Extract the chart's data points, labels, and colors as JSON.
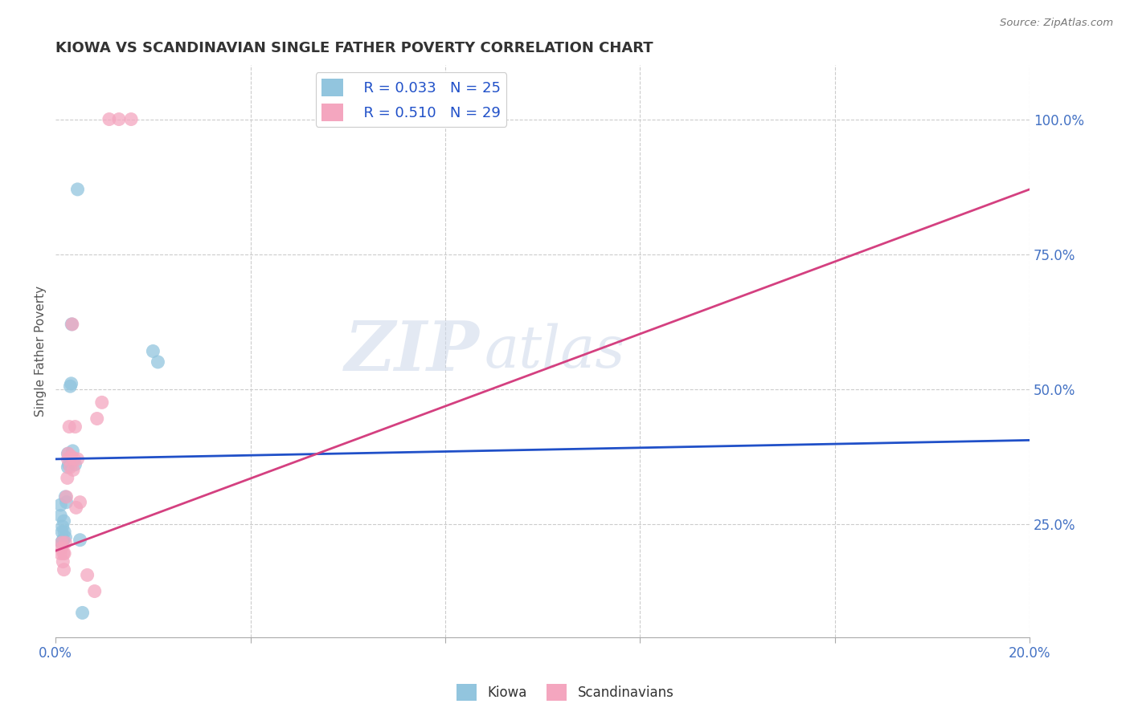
{
  "title": "KIOWA VS SCANDINAVIAN SINGLE FATHER POVERTY CORRELATION CHART",
  "source": "Source: ZipAtlas.com",
  "ylabel": "Single Father Poverty",
  "watermark": "ZIPatlas",
  "legend": {
    "kiowa_R": "R = 0.033",
    "kiowa_N": "N = 25",
    "scand_R": "R = 0.510",
    "scand_N": "N = 29"
  },
  "kiowa_color": "#92c5de",
  "scand_color": "#f4a6bf",
  "kiowa_line_color": "#2050c8",
  "scand_line_color": "#d44080",
  "kiowa_points_x": [
    0.001,
    0.001,
    0.0012,
    0.0013,
    0.0014,
    0.0015,
    0.0016,
    0.0017,
    0.0018,
    0.002,
    0.002,
    0.0022,
    0.0025,
    0.0025,
    0.0027,
    0.003,
    0.0032,
    0.0033,
    0.0035,
    0.004,
    0.0045,
    0.005,
    0.0055,
    0.02,
    0.021
  ],
  "kiowa_points_y": [
    0.285,
    0.265,
    0.215,
    0.235,
    0.245,
    0.22,
    0.22,
    0.255,
    0.235,
    0.225,
    0.3,
    0.29,
    0.355,
    0.38,
    0.36,
    0.505,
    0.51,
    0.62,
    0.385,
    0.36,
    0.87,
    0.22,
    0.085,
    0.57,
    0.55
  ],
  "scand_points_x": [
    0.001,
    0.0012,
    0.0013,
    0.0015,
    0.0016,
    0.0017,
    0.0018,
    0.002,
    0.0022,
    0.0024,
    0.0025,
    0.0026,
    0.0028,
    0.003,
    0.0032,
    0.0034,
    0.0036,
    0.0038,
    0.004,
    0.0042,
    0.0045,
    0.005,
    0.0065,
    0.008,
    0.0085,
    0.0095,
    0.011,
    0.013,
    0.0155
  ],
  "scand_points_y": [
    0.195,
    0.205,
    0.215,
    0.18,
    0.195,
    0.165,
    0.195,
    0.215,
    0.3,
    0.335,
    0.37,
    0.38,
    0.43,
    0.355,
    0.375,
    0.62,
    0.35,
    0.37,
    0.43,
    0.28,
    0.37,
    0.29,
    0.155,
    0.125,
    0.445,
    0.475,
    1.0,
    1.0,
    1.0
  ],
  "xlim": [
    0.0,
    0.2
  ],
  "ylim_bottom": 0.04,
  "ylim_top": 1.1,
  "background_color": "#ffffff",
  "grid_color": "#cccccc",
  "x_ticks_pct": [
    0.0,
    20.0
  ],
  "y_ticks_right": [
    25.0,
    50.0,
    75.0,
    100.0
  ],
  "kiowa_reg_y0": 0.37,
  "kiowa_reg_y1": 0.405,
  "scand_reg_y0": 0.2,
  "scand_reg_y1": 0.87
}
